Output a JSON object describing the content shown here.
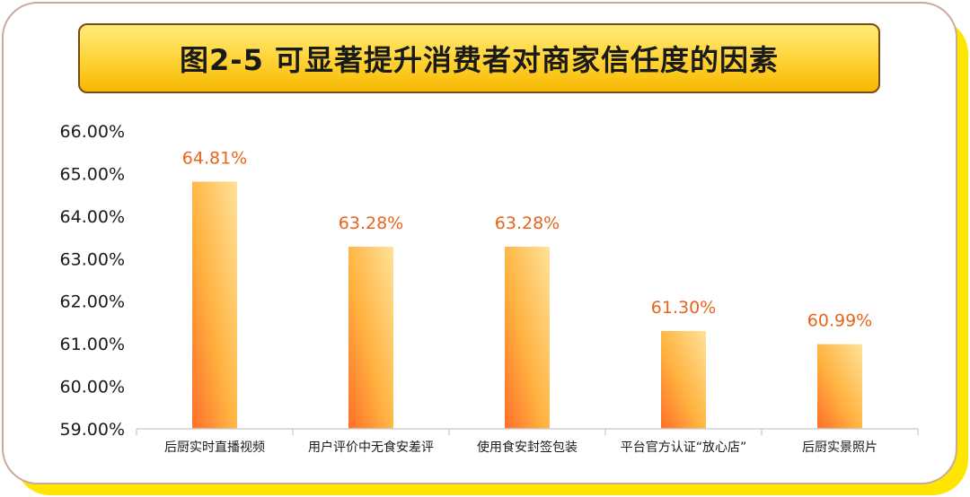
{
  "title": "图2-5 可显著提升消费者对商家信任度的因素",
  "colors": {
    "backdrop": "#ffe600",
    "bar_top": "#ffe29a",
    "bar_mid": "#ffb340",
    "bar_bottom": "#ff6f2a",
    "value_label": "#e8641c",
    "title_fill": "#ffd233",
    "title_border": "#7a4a12"
  },
  "chart_data": {
    "type": "bar",
    "title": "图2-5 可显著提升消费者对商家信任度的因素",
    "xlabel": "",
    "ylabel": "",
    "categories": [
      "后厨实时直播视频",
      "用户评价中无食安差评",
      "使用食安封签包装",
      "平台官方认证“放心店”",
      "后厨实景照片"
    ],
    "values": [
      64.81,
      63.28,
      63.28,
      61.3,
      60.99
    ],
    "value_labels": [
      "64.81%",
      "63.28%",
      "63.28%",
      "61.30%",
      "60.99%"
    ],
    "ylim": [
      59,
      66
    ],
    "yticks": [
      "59.00%",
      "60.00%",
      "61.00%",
      "62.00%",
      "63.00%",
      "64.00%",
      "65.00%",
      "66.00%"
    ],
    "grid": false,
    "legend": "none"
  }
}
